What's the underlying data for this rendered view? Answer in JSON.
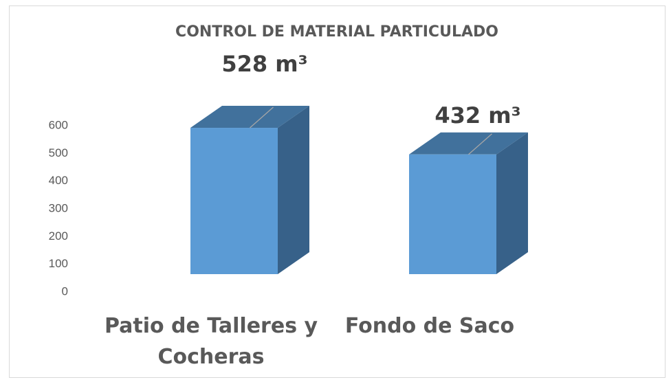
{
  "chart_data": {
    "type": "bar3d",
    "title": "CONTROL DE MATERIAL PARTICULADO",
    "categories": [
      "Patio de Talleres y Cocheras",
      "Fondo de Saco"
    ],
    "values": [
      528,
      432
    ],
    "value_labels": [
      "528 m³",
      "432 m³"
    ],
    "color": "#5b9bd5",
    "ylim": [
      0,
      600
    ],
    "yticks": [
      0,
      100,
      200,
      300,
      400,
      500,
      600
    ],
    "grid": false
  }
}
